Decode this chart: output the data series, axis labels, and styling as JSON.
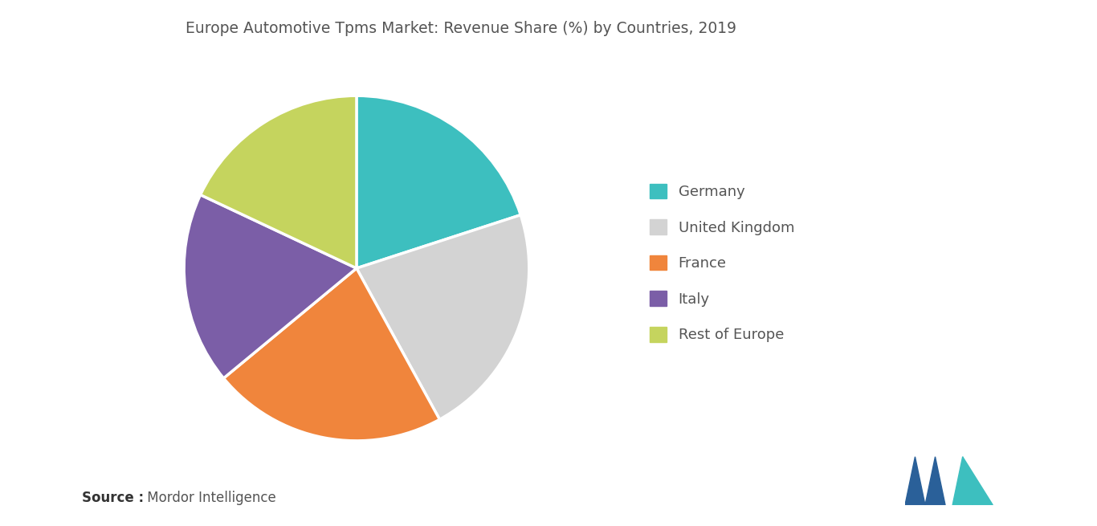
{
  "title": "Europe Automotive Tpms Market: Revenue Share (%) by Countries, 2019",
  "labels": [
    "Germany",
    "United Kingdom",
    "France",
    "Italy",
    "Rest of Europe"
  ],
  "values": [
    20,
    22,
    22,
    18,
    18
  ],
  "colors": [
    "#3dbfbf",
    "#d3d3d3",
    "#f0853c",
    "#7b5ea7",
    "#c5d45e"
  ],
  "legend_labels": [
    "Germany",
    "United Kingdom",
    "France",
    "Italy",
    "Rest of Europe"
  ],
  "source_bold": "Source :",
  "source_normal": " Mordor Intelligence",
  "background_color": "#ffffff",
  "title_fontsize": 13.5,
  "legend_fontsize": 13,
  "source_fontsize": 12,
  "title_color": "#555555",
  "legend_text_color": "#555555",
  "source_color": "#555555",
  "logo_left_color": "#2a6099",
  "logo_right_color": "#3dbfbf"
}
